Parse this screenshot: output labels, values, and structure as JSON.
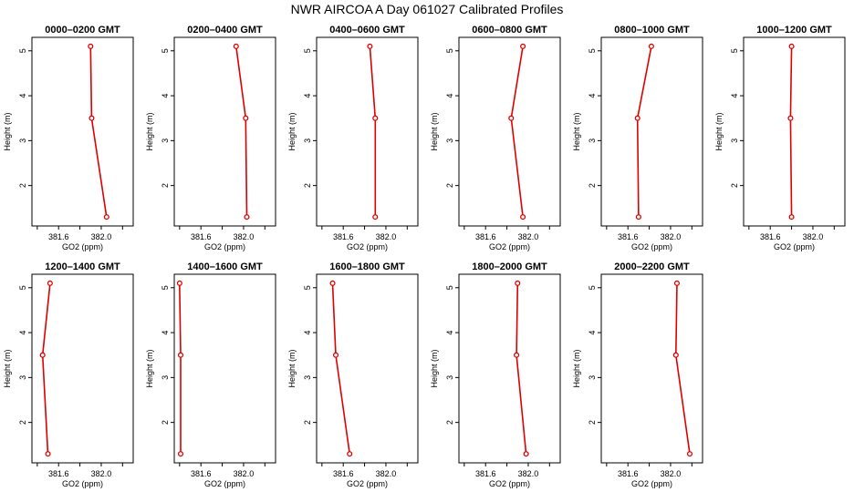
{
  "title": "NWR AIRCOA A  Day 061027  Calibrated Profiles",
  "colors": {
    "series": "#dd0000",
    "axis": "#000000"
  },
  "chart_data": [
    {
      "type": "line",
      "title": "0000–0200 GMT",
      "xlabel": "GO2 (ppm)",
      "ylabel": "Height (m)",
      "xlim": [
        381.35,
        382.3
      ],
      "ylim": [
        1.1,
        5.3
      ],
      "xticks": [
        381.6,
        382.0
      ],
      "yticks": [
        2,
        3,
        4,
        5
      ],
      "x": [
        381.9,
        381.91,
        382.05
      ],
      "y": [
        5.1,
        3.5,
        1.3
      ]
    },
    {
      "type": "line",
      "title": "0200–0400 GMT",
      "xlabel": "GO2 (ppm)",
      "ylabel": "Height (m)",
      "xlim": [
        381.35,
        382.3
      ],
      "ylim": [
        1.1,
        5.3
      ],
      "xticks": [
        381.6,
        382.0
      ],
      "yticks": [
        2,
        3,
        4,
        5
      ],
      "x": [
        381.93,
        382.02,
        382.03
      ],
      "y": [
        5.1,
        3.5,
        1.3
      ]
    },
    {
      "type": "line",
      "title": "0400–0600 GMT",
      "xlabel": "GO2 (ppm)",
      "ylabel": "Height (m)",
      "xlim": [
        381.35,
        382.3
      ],
      "ylim": [
        1.1,
        5.3
      ],
      "xticks": [
        381.6,
        382.0
      ],
      "yticks": [
        2,
        3,
        4,
        5
      ],
      "x": [
        381.85,
        381.9,
        381.9
      ],
      "y": [
        5.1,
        3.5,
        1.3
      ]
    },
    {
      "type": "line",
      "title": "0600–0800 GMT",
      "xlabel": "GO2 (ppm)",
      "ylabel": "Height (m)",
      "xlim": [
        381.35,
        382.3
      ],
      "ylim": [
        1.1,
        5.3
      ],
      "xticks": [
        381.6,
        382.0
      ],
      "yticks": [
        2,
        3,
        4,
        5
      ],
      "x": [
        381.95,
        381.84,
        381.95
      ],
      "y": [
        5.1,
        3.5,
        1.3
      ]
    },
    {
      "type": "line",
      "title": "0800–1000 GMT",
      "xlabel": "GO2 (ppm)",
      "ylabel": "Height (m)",
      "xlim": [
        381.35,
        382.3
      ],
      "ylim": [
        1.1,
        5.3
      ],
      "xticks": [
        381.6,
        382.0
      ],
      "yticks": [
        2,
        3,
        4,
        5
      ],
      "x": [
        381.82,
        381.69,
        381.7
      ],
      "y": [
        5.1,
        3.5,
        1.3
      ]
    },
    {
      "type": "line",
      "title": "1000–1200 GMT",
      "xlabel": "GO2 (ppm)",
      "ylabel": "Height (m)",
      "xlim": [
        381.35,
        382.3
      ],
      "ylim": [
        1.1,
        5.3
      ],
      "xticks": [
        381.6,
        382.0
      ],
      "yticks": [
        2,
        3,
        4,
        5
      ],
      "x": [
        381.8,
        381.79,
        381.8
      ],
      "y": [
        5.1,
        3.5,
        1.3
      ]
    },
    {
      "type": "line",
      "title": "1200–1400 GMT",
      "xlabel": "GO2 (ppm)",
      "ylabel": "Height (m)",
      "xlim": [
        381.35,
        382.3
      ],
      "ylim": [
        1.1,
        5.3
      ],
      "xticks": [
        381.6,
        382.0
      ],
      "yticks": [
        2,
        3,
        4,
        5
      ],
      "x": [
        381.52,
        381.45,
        381.5
      ],
      "y": [
        5.1,
        3.5,
        1.3
      ]
    },
    {
      "type": "line",
      "title": "1400–1600 GMT",
      "xlabel": "GO2 (ppm)",
      "ylabel": "Height (m)",
      "xlim": [
        381.35,
        382.3
      ],
      "ylim": [
        1.1,
        5.3
      ],
      "xticks": [
        381.6,
        382.0
      ],
      "yticks": [
        2,
        3,
        4,
        5
      ],
      "x": [
        381.4,
        381.41,
        381.41
      ],
      "y": [
        5.1,
        3.5,
        1.3
      ]
    },
    {
      "type": "line",
      "title": "1600–1800 GMT",
      "xlabel": "GO2 (ppm)",
      "ylabel": "Height (m)",
      "xlim": [
        381.35,
        382.3
      ],
      "ylim": [
        1.1,
        5.3
      ],
      "xticks": [
        381.6,
        382.0
      ],
      "yticks": [
        2,
        3,
        4,
        5
      ],
      "x": [
        381.5,
        381.53,
        381.66
      ],
      "y": [
        5.1,
        3.5,
        1.3
      ]
    },
    {
      "type": "line",
      "title": "1800–2000 GMT",
      "xlabel": "GO2 (ppm)",
      "ylabel": "Height (m)",
      "xlim": [
        381.35,
        382.3
      ],
      "ylim": [
        1.1,
        5.3
      ],
      "xticks": [
        381.6,
        382.0
      ],
      "yticks": [
        2,
        3,
        4,
        5
      ],
      "x": [
        381.9,
        381.89,
        381.98
      ],
      "y": [
        5.1,
        3.5,
        1.3
      ]
    },
    {
      "type": "line",
      "title": "2000–2200 GMT",
      "xlabel": "GO2 (ppm)",
      "ylabel": "Height (m)",
      "xlim": [
        381.35,
        382.3
      ],
      "ylim": [
        1.1,
        5.3
      ],
      "xticks": [
        381.6,
        382.0
      ],
      "yticks": [
        2,
        3,
        4,
        5
      ],
      "x": [
        382.06,
        382.05,
        382.18
      ],
      "y": [
        5.1,
        3.5,
        1.3
      ]
    }
  ]
}
